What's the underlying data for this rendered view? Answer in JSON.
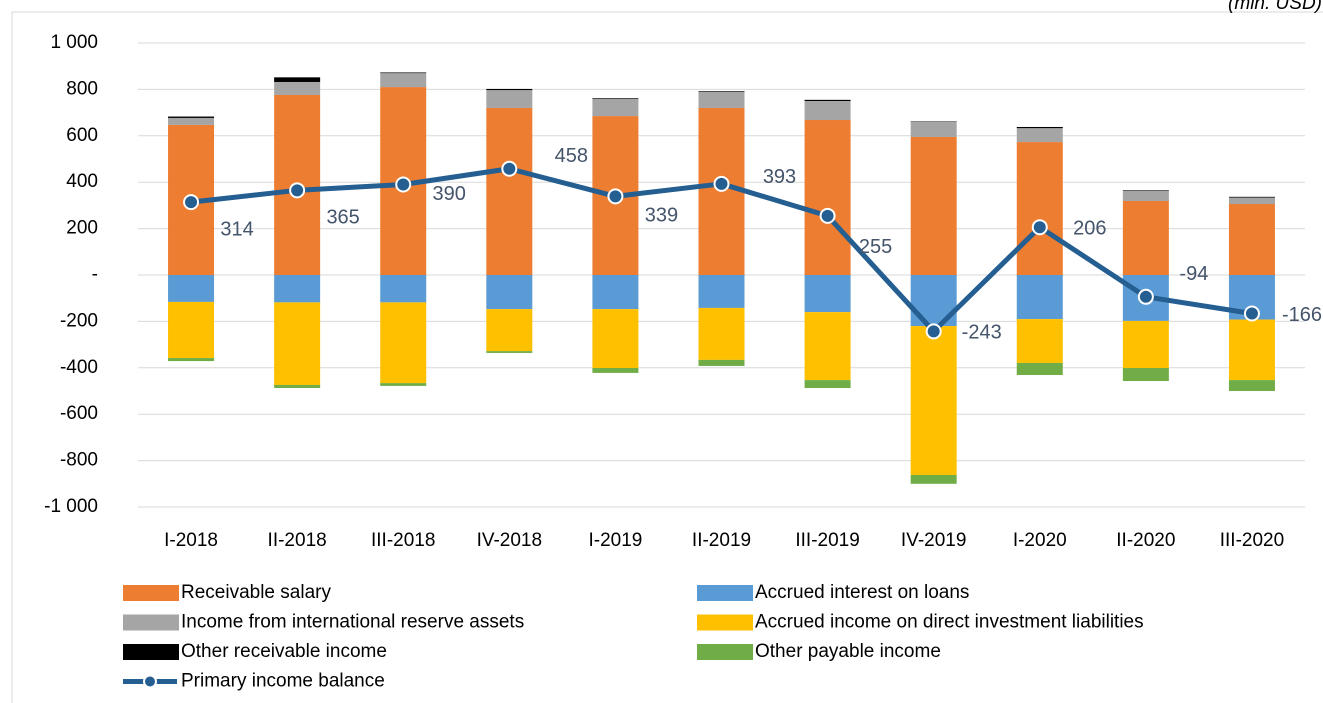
{
  "chart_data": {
    "type": "bar",
    "stacked": true,
    "unit_note": "(mln. USD)",
    "categories": [
      "I-2018",
      "II-2018",
      "III-2018",
      "IV-2018",
      "I-2019",
      "II-2019",
      "III-2019",
      "IV-2019",
      "I-2020",
      "II-2020",
      "III-2020"
    ],
    "series": [
      {
        "name": "Receivable salary",
        "color": "#ed7d31",
        "values": [
          647,
          776,
          810,
          720,
          685,
          720,
          668,
          595,
          573,
          319,
          306
        ]
      },
      {
        "name": "Accrued interest on loans",
        "color": "#5b9bd5",
        "values": [
          -116,
          -118,
          -118,
          -147,
          -147,
          -142,
          -160,
          -220,
          -190,
          -198,
          -192
        ]
      },
      {
        "name": "Income from international reserve assets",
        "color": "#a5a5a5",
        "values": [
          30,
          56,
          60,
          77,
          74,
          69,
          82,
          65,
          60,
          45,
          28
        ]
      },
      {
        "name": "Accrued income on direct investment liabilities",
        "color": "#ffc000",
        "values": [
          -242,
          -356,
          -348,
          -181,
          -254,
          -224,
          -293,
          -642,
          -189,
          -203,
          -261
        ]
      },
      {
        "name": "Other receivable income",
        "color": "#000000",
        "values": [
          6,
          20,
          3,
          5,
          3,
          3,
          5,
          2,
          5,
          2,
          3
        ]
      },
      {
        "name": "Other payable income",
        "color": "#70ad47",
        "values": [
          -13,
          -13,
          -12,
          -8,
          -21,
          -26,
          -34,
          -38,
          -52,
          -56,
          -47
        ]
      },
      {
        "name": "Primary income balance",
        "type": "line",
        "color": "#255e91",
        "values": [
          314,
          365,
          390,
          458,
          339,
          393,
          255,
          -243,
          206,
          -94,
          -166
        ]
      }
    ],
    "ylim": [
      -1000,
      1000
    ],
    "yticks": [
      {
        "value": -1000,
        "label": "-1 000"
      },
      -800,
      -600,
      -400,
      -200,
      {
        "value": 0,
        "label": "-"
      },
      200,
      400,
      600,
      800,
      {
        "value": 1000,
        "label": "1 000"
      }
    ],
    "grid": true
  }
}
